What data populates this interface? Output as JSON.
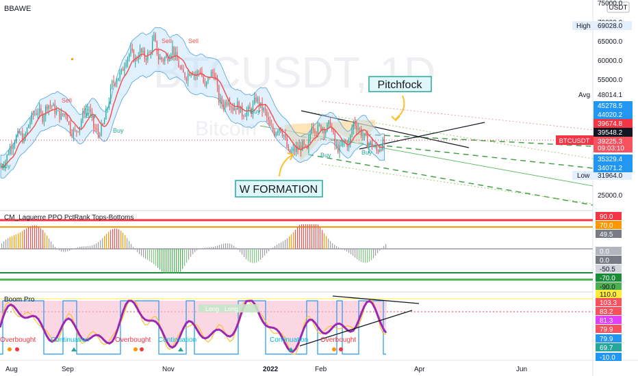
{
  "header": {
    "title": "BBAWE"
  },
  "watermark": {
    "symbol": "BTCUSDT, 1D",
    "sub": "Bitcoin"
  },
  "currency": "USDT",
  "price_axis": {
    "ticks": [
      "75000.0",
      "70000.0",
      "65000.0",
      "60000.0",
      "55000.0",
      "25000.0"
    ],
    "stats": [
      {
        "name": "High",
        "value": "69028.0"
      },
      {
        "name": "Avg",
        "value": "48014.1"
      },
      {
        "name": "Low",
        "value": "31964.0"
      }
    ],
    "badges": [
      {
        "value": "45278.5",
        "color": "#2196f3"
      },
      {
        "value": "44020.2",
        "color": "#2196f3"
      },
      {
        "value": "39674.8",
        "color": "#f23645"
      },
      {
        "value": "39548.2",
        "color": "#131722"
      },
      {
        "value": "39225.3",
        "color": "#f7525f"
      },
      {
        "value": "35329.4",
        "color": "#2196f3"
      },
      {
        "value": "34071.2",
        "color": "#2196f3"
      }
    ],
    "symbol_badge": "BTCUSDT",
    "countdown": "09:03:10"
  },
  "annotations": {
    "pitchfock": "Pitchfock",
    "w_formation": "W FORMATION"
  },
  "signals": {
    "sell": "Sell",
    "buy": "Buy",
    "overbought": "Overbought",
    "continuation": "Continuation",
    "long": "Long"
  },
  "ppo_panel": {
    "title": "CM_Laguerre PPO PctRank Tops-Bottoms",
    "badges": [
      {
        "value": "90.0",
        "color": "#f23645",
        "text": "#ffffff"
      },
      {
        "value": "70.0",
        "color": "#ff9800",
        "text": "#ffffff"
      },
      {
        "value": "49.5",
        "color": "#787b86",
        "text": "#ffffff"
      },
      {
        "value": "0.0",
        "color": "#b2b5be",
        "text": "#ffffff"
      },
      {
        "value": "0.0",
        "color": "#787b86",
        "text": "#ffffff"
      },
      {
        "value": "-50.5",
        "color": "#d1d4dc",
        "text": "#131722"
      },
      {
        "value": "-70.0",
        "color": "#1b8b3a",
        "text": "#ffffff"
      },
      {
        "value": "-90.0",
        "color": "#4caf50",
        "text": "#131722"
      }
    ]
  },
  "boom_panel": {
    "title": "Boom Pro",
    "badges": [
      {
        "value": "110.0",
        "color": "#ffeb3b",
        "text": "#131722"
      },
      {
        "value": "103.3",
        "color": "#f7525f",
        "text": "#ffffff"
      },
      {
        "value": "83.2",
        "color": "#f7525f",
        "text": "#ffffff"
      },
      {
        "value": "81.3",
        "color": "#e040fb",
        "text": "#ffffff"
      },
      {
        "value": "79.9",
        "color": "#f7525f",
        "text": "#ffffff"
      },
      {
        "value": "79.9",
        "color": "#2196f3",
        "text": "#ffffff"
      },
      {
        "value": "69.7",
        "color": "#26a69a",
        "text": "#ffffff"
      },
      {
        "value": "-10.0",
        "color": "#2196f3",
        "text": "#ffffff"
      }
    ]
  },
  "time_axis": [
    "Aug",
    "Sep",
    "Nov",
    "2022",
    "Feb",
    "Apr",
    "Jun"
  ],
  "colors": {
    "up": "#26a69a",
    "down": "#ef5350",
    "ma": "#ef5350",
    "band": "#4a9fe0"
  },
  "chart_data": {
    "type": "candlestick",
    "interval": "1D",
    "x_range": [
      "2021-07-25",
      "2022-06-25"
    ],
    "price_range": [
      25000,
      75000
    ],
    "series": [
      {
        "name": "BTCUSDT",
        "close": [
          33000,
          34500,
          38000,
          40000,
          41500,
          39800,
          44000,
          46500,
          47500,
          45800,
          49200,
          48800,
          47000,
          46000,
          47200,
          42500,
          41800,
          43800,
          47600,
          48100,
          43200,
          41500,
          43500,
          48500,
          54500,
          56000,
          57400,
          61200,
          62800,
          60700,
          63000,
          61500,
          62300,
          66500,
          61300,
          60900,
          61800,
          63900,
          60400,
          57200,
          56500,
          58300,
          56900,
          58200,
          53300,
          56900,
          57500,
          50200,
          49000,
          50600,
          48300,
          48900,
          46800,
          47300,
          47600,
          50800,
          48500,
          47000,
          43100,
          41900,
          43500,
          41200,
          36300,
          36900,
          37600,
          38400,
          36800,
          44100,
          42400,
          43500,
          42500,
          44400,
          38500,
          37300,
          39500,
          38700,
          44600,
          43100,
          41100,
          39200,
          38700,
          37000,
          38500,
          39225
        ]
      }
    ]
  }
}
